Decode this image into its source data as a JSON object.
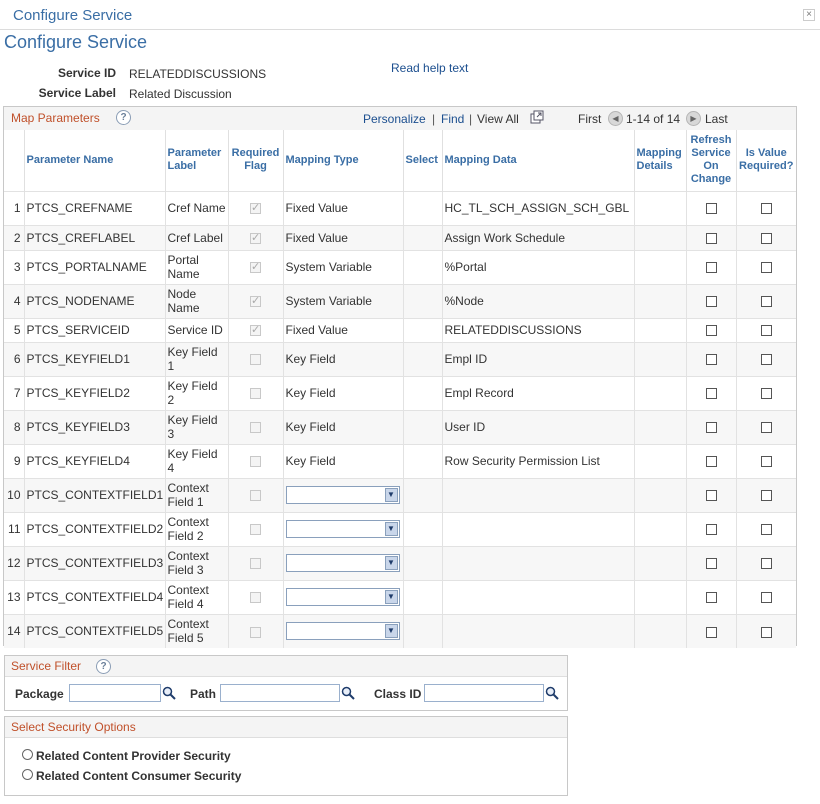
{
  "window": {
    "title": "Configure Service",
    "close_glyph": "×"
  },
  "page": {
    "title": "Configure Service"
  },
  "service": {
    "id_label": "Service ID",
    "id_value": "RELATEDDISCUSSIONS",
    "label_label": "Service Label",
    "label_value": "Related Discussion"
  },
  "help_link": "Read help text",
  "grid": {
    "title": "Map Parameters",
    "help_glyph": "?",
    "personalize": "Personalize",
    "find": "Find",
    "view_all": "View All",
    "first": "First",
    "range": "1-14 of 14",
    "last": "Last",
    "columns": [
      "",
      "Parameter Name",
      "Parameter Label",
      "Required Flag",
      "Mapping Type",
      "Select",
      "Mapping Data",
      "Mapping Details",
      "Refresh Service On Change",
      "Is Value Required?"
    ],
    "rows": [
      {
        "n": "1",
        "name": "PTCS_CREFNAME",
        "label": "Cref Name",
        "required": true,
        "type": "Fixed Value",
        "data": "HC_TL_SCH_ASSIGN_SCH_GBL"
      },
      {
        "n": "2",
        "name": "PTCS_CREFLABEL",
        "label": "Cref Label",
        "required": true,
        "type": "Fixed Value",
        "data": "Assign Work Schedule"
      },
      {
        "n": "3",
        "name": "PTCS_PORTALNAME",
        "label": "Portal Name",
        "required": true,
        "type": "System Variable",
        "data": "%Portal"
      },
      {
        "n": "4",
        "name": "PTCS_NODENAME",
        "label": "Node Name",
        "required": true,
        "type": "System Variable",
        "data": "%Node"
      },
      {
        "n": "5",
        "name": "PTCS_SERVICEID",
        "label": "Service ID",
        "required": true,
        "type": "Fixed Value",
        "data": "RELATEDDISCUSSIONS"
      },
      {
        "n": "6",
        "name": "PTCS_KEYFIELD1",
        "label": "Key Field 1",
        "required": false,
        "type": "Key Field",
        "data": "Empl ID"
      },
      {
        "n": "7",
        "name": "PTCS_KEYFIELD2",
        "label": "Key Field 2",
        "required": false,
        "type": "Key Field",
        "data": "Empl Record"
      },
      {
        "n": "8",
        "name": "PTCS_KEYFIELD3",
        "label": "Key Field 3",
        "required": false,
        "type": "Key Field",
        "data": "User ID"
      },
      {
        "n": "9",
        "name": "PTCS_KEYFIELD4",
        "label": "Key Field 4",
        "required": false,
        "type": "Key Field",
        "data": "Row Security Permission List"
      },
      {
        "n": "10",
        "name": "PTCS_CONTEXTFIELD1",
        "label": "Context Field 1",
        "required": false,
        "type": "",
        "data": ""
      },
      {
        "n": "11",
        "name": "PTCS_CONTEXTFIELD2",
        "label": "Context Field 2",
        "required": false,
        "type": "",
        "data": ""
      },
      {
        "n": "12",
        "name": "PTCS_CONTEXTFIELD3",
        "label": "Context Field 3",
        "required": false,
        "type": "",
        "data": ""
      },
      {
        "n": "13",
        "name": "PTCS_CONTEXTFIELD4",
        "label": "Context Field 4",
        "required": false,
        "type": "",
        "data": ""
      },
      {
        "n": "14",
        "name": "PTCS_CONTEXTFIELD5",
        "label": "Context Field 5",
        "required": false,
        "type": "",
        "data": ""
      }
    ]
  },
  "filter": {
    "title": "Service Filter",
    "package_label": "Package",
    "package_value": "",
    "path_label": "Path",
    "path_value": "",
    "class_label": "Class ID",
    "class_value": ""
  },
  "security": {
    "title": "Select Security Options",
    "options": [
      "Related Content Provider Security",
      "Related Content Consumer Security"
    ]
  }
}
